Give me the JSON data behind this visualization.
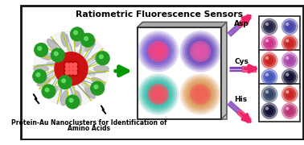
{
  "title": "Ratiometric Fluorescence Sensors",
  "subtitle1": "Protein-Au Nanoclusters for Identification of",
  "subtitle2": "Amino Acids",
  "bg_color": "#ffffff",
  "border_color": "#111111",
  "amino_acids": [
    "Asp",
    "Cys",
    "His"
  ],
  "pink_arrow_color": "#ee2266",
  "green_arrow_color": "#009900",
  "panel_border": "#333333",
  "asp_circles": [
    "#222244",
    "#4444aa",
    "#cc3388",
    "#cc2222"
  ],
  "cys_circles": [
    "#cc2222",
    "#aa44aa",
    "#4455bb",
    "#111133"
  ],
  "his_circles": [
    "#334466",
    "#cc2222",
    "#111133",
    "#bb3377"
  ]
}
